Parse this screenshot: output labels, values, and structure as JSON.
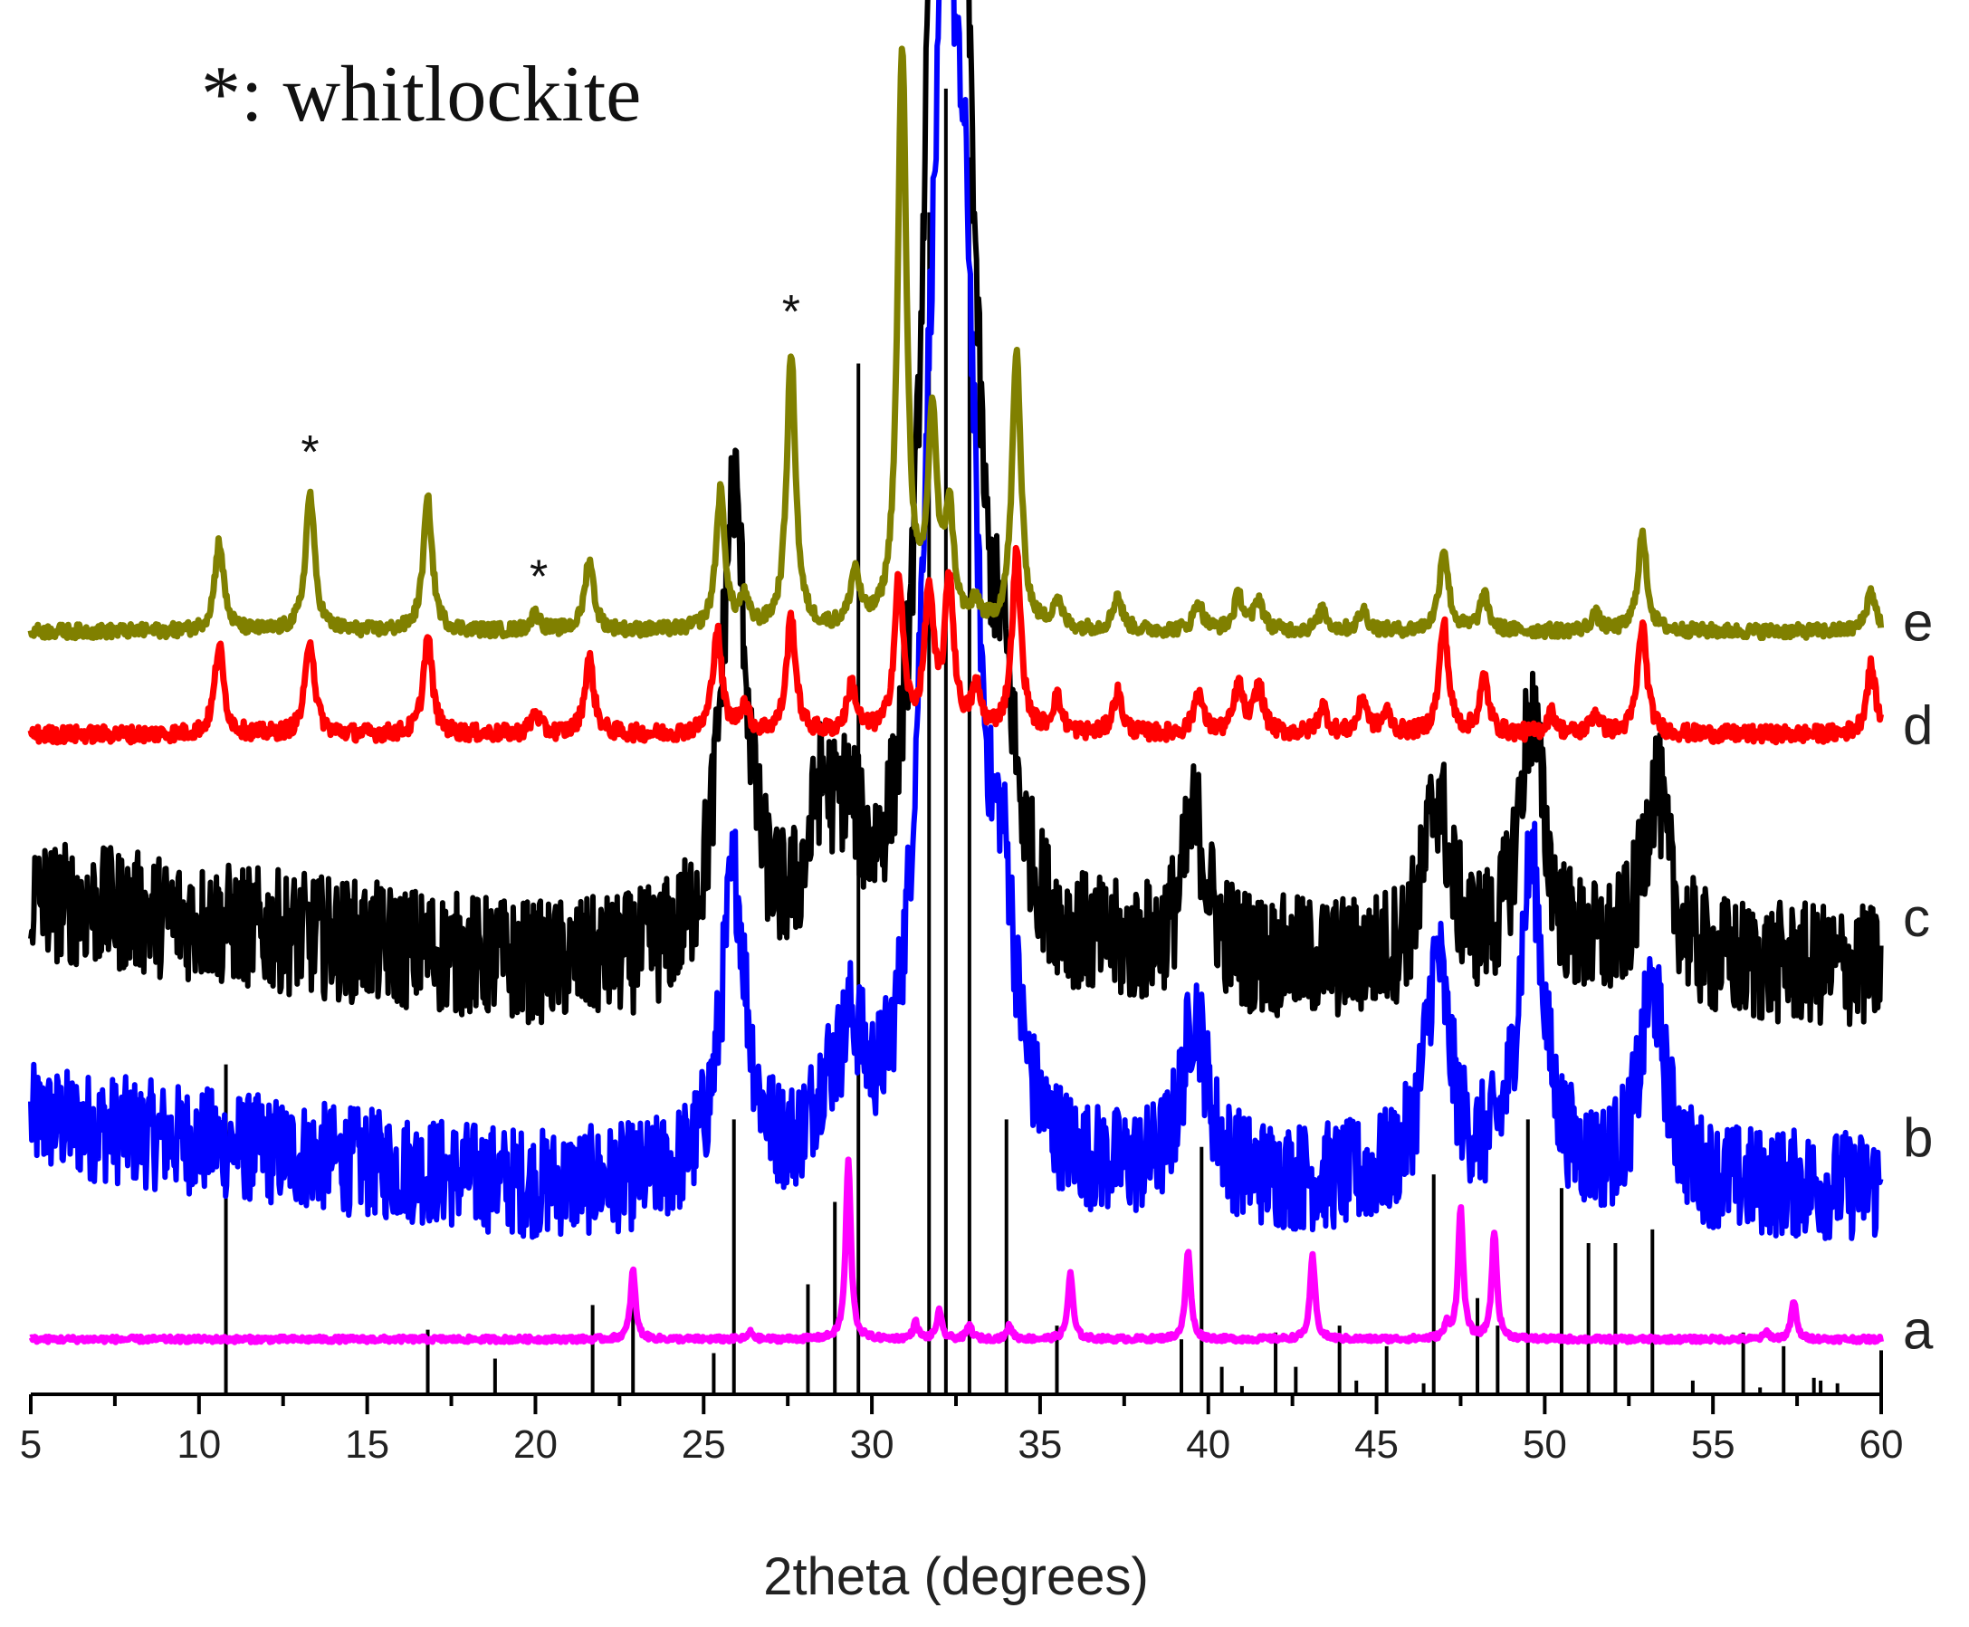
{
  "chart_data": {
    "type": "line",
    "title": "",
    "xlabel": "2theta (degrees)",
    "ylabel": "",
    "xlim": [
      5,
      60
    ],
    "ylim": [
      0,
      1
    ],
    "xticks": [
      5,
      10,
      15,
      20,
      25,
      30,
      35,
      40,
      45,
      50,
      55,
      60
    ],
    "annotation": "*: whitlockite",
    "asterisk_marker": "*",
    "asterisks_at": [
      13.3,
      20.1,
      27.6
    ],
    "series": [
      {
        "name": "a",
        "label": "a",
        "color": "#ff00ff",
        "baseline": 0.04,
        "noise": 0.002,
        "width": 0.09,
        "peaks": [
          [
            22.9,
            0.05
          ],
          [
            26.4,
            0.005
          ],
          [
            29.3,
            0.13
          ],
          [
            31.3,
            0.012
          ],
          [
            32.0,
            0.02
          ],
          [
            32.9,
            0.01
          ],
          [
            34.1,
            0.01
          ],
          [
            35.9,
            0.048
          ],
          [
            39.4,
            0.065
          ],
          [
            43.1,
            0.06
          ],
          [
            47.1,
            0.01
          ],
          [
            47.5,
            0.095
          ],
          [
            48.5,
            0.078
          ],
          [
            56.6,
            0.005
          ],
          [
            57.4,
            0.028
          ]
        ]
      },
      {
        "name": "b",
        "label": "b",
        "color": "#0000ff",
        "baseline": 0.15,
        "noise": 0.04,
        "width": 0.45,
        "peaks": [
          [
            25.9,
            0.22
          ],
          [
            28.6,
            0.04
          ],
          [
            29.4,
            0.08
          ],
          [
            31.7,
            0.25
          ],
          [
            32.2,
            0.65
          ],
          [
            32.8,
            0.45
          ],
          [
            33.9,
            0.15
          ],
          [
            39.6,
            0.12
          ],
          [
            46.8,
            0.16
          ],
          [
            49.6,
            0.23
          ],
          [
            53.2,
            0.14
          ]
        ]
      },
      {
        "name": "c",
        "label": "c",
        "color": "#000000",
        "baseline": 0.31,
        "noise": 0.045,
        "width": 0.45,
        "peaks": [
          [
            25.9,
            0.34
          ],
          [
            28.5,
            0.09
          ],
          [
            29.3,
            0.07
          ],
          [
            31.8,
            0.4
          ],
          [
            32.2,
            0.6
          ],
          [
            32.8,
            0.45
          ],
          [
            33.9,
            0.13
          ],
          [
            39.6,
            0.1
          ],
          [
            46.8,
            0.12
          ],
          [
            49.6,
            0.18
          ],
          [
            53.3,
            0.13
          ]
        ]
      },
      {
        "name": "d",
        "label": "d",
        "color": "#ff0000",
        "baseline": 0.48,
        "noise": 0.006,
        "width": 0.16,
        "peaks": [
          [
            10.6,
            0.065
          ],
          [
            13.3,
            0.07
          ],
          [
            16.8,
            0.07
          ],
          [
            20.0,
            0.015
          ],
          [
            21.6,
            0.055
          ],
          [
            25.4,
            0.075
          ],
          [
            26.2,
            0.02
          ],
          [
            27.6,
            0.085
          ],
          [
            29.4,
            0.035
          ],
          [
            30.8,
            0.11
          ],
          [
            31.7,
            0.1
          ],
          [
            32.3,
            0.11
          ],
          [
            33.1,
            0.03
          ],
          [
            34.3,
            0.13
          ],
          [
            35.5,
            0.025
          ],
          [
            37.3,
            0.03
          ],
          [
            39.7,
            0.03
          ],
          [
            40.9,
            0.035
          ],
          [
            41.5,
            0.035
          ],
          [
            43.4,
            0.02
          ],
          [
            44.6,
            0.025
          ],
          [
            45.3,
            0.015
          ],
          [
            47.0,
            0.08
          ],
          [
            48.2,
            0.04
          ],
          [
            50.2,
            0.015
          ],
          [
            51.5,
            0.015
          ],
          [
            52.9,
            0.08
          ],
          [
            59.7,
            0.05
          ]
        ]
      },
      {
        "name": "e",
        "label": "e",
        "color": "#808000",
        "baseline": 0.555,
        "noise": 0.005,
        "width": 0.16,
        "peaks": [
          [
            10.6,
            0.065
          ],
          [
            13.3,
            0.1
          ],
          [
            16.8,
            0.095
          ],
          [
            20.0,
            0.012
          ],
          [
            21.6,
            0.052
          ],
          [
            25.5,
            0.1
          ],
          [
            26.2,
            0.02
          ],
          [
            27.6,
            0.2
          ],
          [
            29.5,
            0.04
          ],
          [
            30.9,
            0.42
          ],
          [
            31.8,
            0.15
          ],
          [
            32.3,
            0.08
          ],
          [
            33.1,
            0.015
          ],
          [
            34.3,
            0.2
          ],
          [
            35.5,
            0.02
          ],
          [
            37.3,
            0.025
          ],
          [
            39.7,
            0.02
          ],
          [
            40.9,
            0.025
          ],
          [
            41.5,
            0.022
          ],
          [
            43.4,
            0.015
          ],
          [
            44.6,
            0.015
          ],
          [
            47.0,
            0.06
          ],
          [
            48.2,
            0.025
          ],
          [
            51.5,
            0.012
          ],
          [
            52.9,
            0.07
          ],
          [
            59.7,
            0.03
          ]
        ]
      }
    ],
    "reference_sticks": {
      "color": "#000000",
      "base": 0.0,
      "positions": [
        10.8,
        16.8,
        18.8,
        21.7,
        22.9,
        25.3,
        25.9,
        28.1,
        28.9,
        29.6,
        31.7,
        32.2,
        32.9,
        34.0,
        35.5,
        39.2,
        39.8,
        40.4,
        41.0,
        42.0,
        42.6,
        43.9,
        44.4,
        45.3,
        46.4,
        46.7,
        48.0,
        48.6,
        49.5,
        50.5,
        51.3,
        52.1,
        53.2,
        54.4,
        55.9,
        56.4,
        57.1,
        58.0,
        58.2,
        58.7,
        60.0
      ],
      "heights": [
        0.24,
        0.047,
        0.026,
        0.065,
        0.065,
        0.03,
        0.2,
        0.08,
        0.14,
        0.75,
        0.86,
        0.95,
        0.9,
        0.2,
        0.05,
        0.04,
        0.18,
        0.02,
        0.006,
        0.045,
        0.02,
        0.05,
        0.01,
        0.035,
        0.008,
        0.16,
        0.07,
        0.05,
        0.2,
        0.15,
        0.11,
        0.11,
        0.12,
        0.01,
        0.045,
        0.005,
        0.035,
        0.012,
        0.01,
        0.008,
        0.032
      ]
    }
  }
}
